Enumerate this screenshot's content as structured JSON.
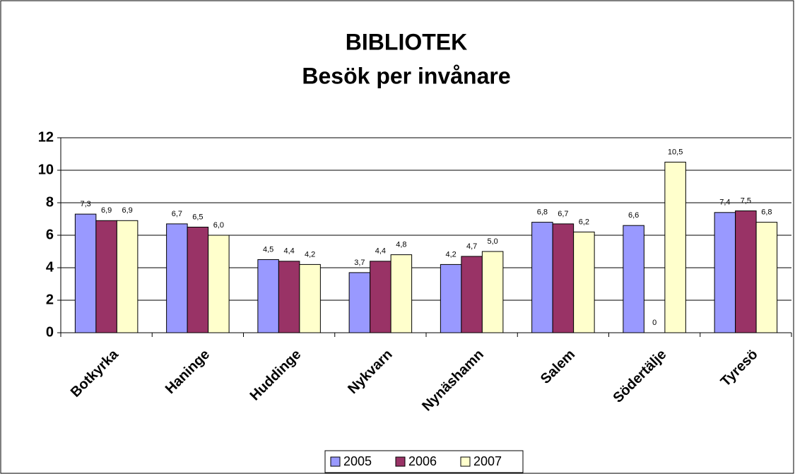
{
  "chart_data": {
    "type": "bar",
    "title": "BIBLIOTEK",
    "subtitle": "Besök per invånare",
    "categories": [
      "Botkyrka",
      "Haninge",
      "Huddinge",
      "Nykvarn",
      "Nynäshamn",
      "Salem",
      "Södertälje",
      "Tyresö"
    ],
    "series": [
      {
        "name": "2005",
        "color": "#9999ff",
        "values": [
          7.3,
          6.7,
          4.5,
          3.7,
          4.2,
          6.8,
          6.6,
          7.4
        ],
        "value_labels": [
          "7,3",
          "6,7",
          "4,5",
          "3,7",
          "4,2",
          "6,8",
          "6,6",
          "7,4"
        ]
      },
      {
        "name": "2006",
        "color": "#993366",
        "values": [
          6.9,
          6.5,
          4.4,
          4.4,
          4.7,
          6.7,
          0,
          7.5
        ],
        "value_labels": [
          "6,9",
          "6,5",
          "4,4",
          "4,4",
          "4,7",
          "6,7",
          "0",
          "7,5"
        ]
      },
      {
        "name": "2007",
        "color": "#ffffcc",
        "values": [
          6.9,
          6.0,
          4.2,
          4.8,
          5.0,
          6.2,
          10.5,
          6.8
        ],
        "value_labels": [
          "6,9",
          "6,0",
          "4,2",
          "4,8",
          "5,0",
          "6,2",
          "10,5",
          "6,8"
        ]
      }
    ],
    "ylim": [
      0,
      12
    ],
    "yticks": [
      0,
      2,
      4,
      6,
      8,
      10,
      12
    ],
    "grid": true,
    "legend": "bottom"
  }
}
